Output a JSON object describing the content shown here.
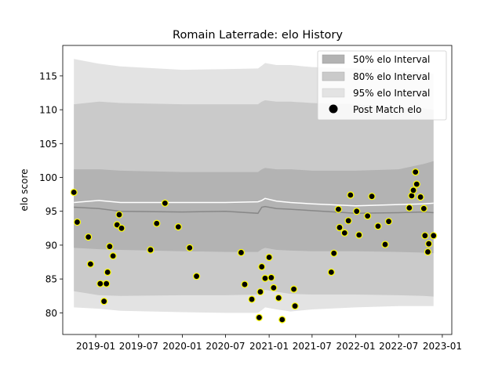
{
  "chart_data": {
    "type": "scatter",
    "title": "Romain Laterrade: elo History",
    "xlabel": "",
    "ylabel": "elo score",
    "ylim": [
      76.8,
      119.5
    ],
    "xlim": [
      "2018-08-15",
      "2023-02-10"
    ],
    "x_ticks": [
      "2019-01",
      "2019-07",
      "2020-01",
      "2020-07",
      "2021-01",
      "2021-07",
      "2022-01",
      "2022-07",
      "2023-01"
    ],
    "y_ticks": [
      80,
      85,
      90,
      95,
      100,
      105,
      110,
      115
    ],
    "legend": {
      "placement": "upper-right",
      "entries": [
        "50% elo Interval",
        "80% elo Interval",
        "95% elo Interval",
        "Post Match elo"
      ]
    },
    "colors": {
      "band50": "#b3b3b3",
      "band80": "#cacaca",
      "band95": "#e3e3e3",
      "mean_line": "#888888",
      "median_line": "#ffffff",
      "point_fill": "#000000",
      "point_edge": "#ffff00"
    },
    "bands": {
      "x": [
        "2018-10-01",
        "2019-01-15",
        "2019-04-15",
        "2020-01-01",
        "2020-07-01",
        "2020-11-15",
        "2020-12-01",
        "2020-12-15",
        "2021-02-01",
        "2021-04-01",
        "2021-07-01",
        "2022-01-01",
        "2022-07-01",
        "2022-10-15",
        "2022-11-25"
      ],
      "p95_upper": [
        117.5,
        116.8,
        116.4,
        115.9,
        116.0,
        116.1,
        116.5,
        116.9,
        116.6,
        116.6,
        116.3,
        116.1,
        115.8,
        115.5,
        115.3
      ],
      "p80_upper": [
        110.8,
        111.2,
        111.0,
        110.8,
        110.8,
        110.8,
        111.2,
        111.4,
        111.2,
        111.2,
        111.0,
        110.8,
        110.4,
        110.2,
        110.0
      ],
      "p50_upper": [
        101.2,
        101.2,
        101.0,
        100.8,
        100.8,
        100.8,
        101.2,
        101.4,
        101.2,
        101.2,
        101.0,
        101.0,
        101.2,
        102.0,
        102.4
      ],
      "p50_lower": [
        89.6,
        89.4,
        89.3,
        89.1,
        89.0,
        89.0,
        89.4,
        89.6,
        89.3,
        89.2,
        89.1,
        89.1,
        89.0,
        88.9,
        88.8
      ],
      "p80_lower": [
        83.2,
        82.6,
        82.5,
        82.6,
        82.6,
        82.7,
        83.1,
        83.4,
        83.1,
        82.8,
        82.7,
        82.7,
        82.6,
        82.5,
        82.4
      ],
      "p95_lower": [
        80.8,
        80.6,
        80.3,
        80.1,
        80.0,
        80.0,
        80.4,
        80.8,
        80.5,
        80.2,
        80.5,
        80.8,
        81.0,
        81.0,
        81.0
      ],
      "mean": [
        95.6,
        95.4,
        95.0,
        94.9,
        95.0,
        94.7,
        95.6,
        95.7,
        95.4,
        95.3,
        95.1,
        94.7,
        94.8,
        94.9,
        94.8
      ],
      "median": [
        96.3,
        96.6,
        96.3,
        96.3,
        96.3,
        96.4,
        96.6,
        96.9,
        96.5,
        96.3,
        96.1,
        95.8,
        96.0,
        96.1,
        96.2
      ]
    },
    "series": [
      {
        "name": "Post Match elo",
        "points": [
          [
            "2018-10-01",
            97.8
          ],
          [
            "2018-10-15",
            93.4
          ],
          [
            "2018-12-01",
            91.2
          ],
          [
            "2018-12-10",
            87.2
          ],
          [
            "2019-01-20",
            84.3
          ],
          [
            "2019-02-05",
            81.7
          ],
          [
            "2019-02-15",
            84.3
          ],
          [
            "2019-02-20",
            86.0
          ],
          [
            "2019-03-01",
            89.8
          ],
          [
            "2019-03-15",
            88.4
          ],
          [
            "2019-04-01",
            93.0
          ],
          [
            "2019-04-10",
            94.5
          ],
          [
            "2019-04-20",
            92.5
          ],
          [
            "2019-08-20",
            89.3
          ],
          [
            "2019-09-15",
            93.2
          ],
          [
            "2019-10-20",
            96.2
          ],
          [
            "2019-12-15",
            92.7
          ],
          [
            "2020-02-01",
            89.6
          ],
          [
            "2020-03-01",
            85.4
          ],
          [
            "2020-09-05",
            88.9
          ],
          [
            "2020-09-20",
            84.2
          ],
          [
            "2020-10-20",
            82.0
          ],
          [
            "2020-11-20",
            79.3
          ],
          [
            "2020-11-25",
            83.1
          ],
          [
            "2020-12-01",
            86.8
          ],
          [
            "2020-12-15",
            85.1
          ],
          [
            "2021-01-01",
            88.2
          ],
          [
            "2021-01-10",
            85.2
          ],
          [
            "2021-01-20",
            83.7
          ],
          [
            "2021-02-10",
            82.2
          ],
          [
            "2021-02-25",
            79.0
          ],
          [
            "2021-04-15",
            83.5
          ],
          [
            "2021-04-20",
            81.0
          ],
          [
            "2021-09-20",
            86.0
          ],
          [
            "2021-10-01",
            88.8
          ],
          [
            "2021-10-20",
            95.3
          ],
          [
            "2021-10-25",
            92.6
          ],
          [
            "2021-11-15",
            91.8
          ],
          [
            "2021-12-01",
            93.6
          ],
          [
            "2021-12-10",
            97.4
          ],
          [
            "2022-01-05",
            95.0
          ],
          [
            "2022-01-15",
            91.5
          ],
          [
            "2022-02-20",
            94.3
          ],
          [
            "2022-03-10",
            97.2
          ],
          [
            "2022-04-05",
            92.8
          ],
          [
            "2022-05-05",
            90.1
          ],
          [
            "2022-05-20",
            93.5
          ],
          [
            "2022-08-15",
            95.5
          ],
          [
            "2022-08-25",
            97.3
          ],
          [
            "2022-09-01",
            98.1
          ],
          [
            "2022-09-10",
            100.8
          ],
          [
            "2022-09-15",
            99.0
          ],
          [
            "2022-10-01",
            97.1
          ],
          [
            "2022-10-15",
            95.4
          ],
          [
            "2022-10-20",
            91.4
          ],
          [
            "2022-11-01",
            89.0
          ],
          [
            "2022-11-05",
            90.2
          ],
          [
            "2022-11-25",
            91.4
          ]
        ]
      }
    ]
  }
}
